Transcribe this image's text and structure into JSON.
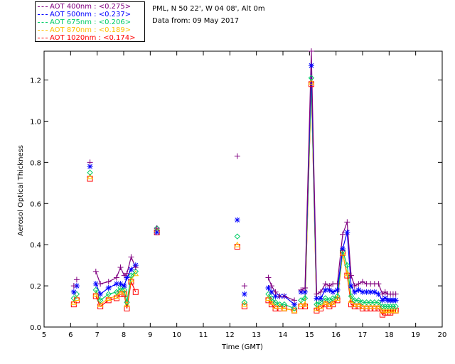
{
  "legend": [
    {
      "label": "AOT  400nm : <0.275>",
      "color": "#800080"
    },
    {
      "label": "AOT  500nm : <0.237>",
      "color": "#0000ff"
    },
    {
      "label": "AOT  675nm : <0.206>",
      "color": "#00cc66"
    },
    {
      "label": "AOT  870nm : <0.189>",
      "color": "#ffbf00"
    },
    {
      "label": "AOT 1020nm : <0.174>",
      "color": "#ff0000"
    }
  ],
  "info": {
    "location": "PML, N 50 22', W 04 08', Alt 0m",
    "date": "Data from: 09 May 2017"
  },
  "chart_data": {
    "type": "line",
    "title": "",
    "xlabel": "Time (GMT)",
    "ylabel": "Aerosol Optical Thickness",
    "xlim": [
      5,
      20
    ],
    "ylim": [
      0,
      1.34
    ],
    "xticks": [
      "5",
      "6",
      "7",
      "8",
      "9",
      "10",
      "11",
      "12",
      "13",
      "14",
      "15",
      "16",
      "17",
      "18",
      "19",
      "20"
    ],
    "yticks": [
      "0.0",
      "0.2",
      "0.4",
      "0.6",
      "0.8",
      "1.0",
      "1.2"
    ],
    "x": [
      6.12,
      6.23,
      6.73,
      6.95,
      7.12,
      7.43,
      7.73,
      7.88,
      8.02,
      8.12,
      8.28,
      8.45,
      9.25,
      12.28,
      12.55,
      13.45,
      13.57,
      13.72,
      13.88,
      14.05,
      14.43,
      14.68,
      14.83,
      15.07,
      15.27,
      15.42,
      15.6,
      15.75,
      15.88,
      16.05,
      16.25,
      16.42,
      16.57,
      16.7,
      16.85,
      17.0,
      17.15,
      17.3,
      17.45,
      17.6,
      17.75,
      17.85,
      17.95,
      18.05,
      18.15,
      18.25
    ],
    "segment_breaks_after_index": [
      0,
      1,
      2,
      11,
      12,
      13,
      14,
      20
    ],
    "series": [
      {
        "name": "AOT 400nm",
        "marker": "plus",
        "values": [
          0.2,
          0.23,
          0.8,
          0.27,
          0.21,
          0.22,
          0.24,
          0.29,
          0.25,
          0.26,
          0.34,
          0.29,
          0.48,
          0.83,
          0.2,
          0.24,
          0.2,
          0.17,
          0.15,
          0.15,
          0.13,
          0.18,
          0.19,
          1.34,
          0.16,
          0.17,
          0.21,
          0.2,
          0.21,
          0.21,
          0.45,
          0.51,
          0.25,
          0.2,
          0.21,
          0.22,
          0.21,
          0.21,
          0.21,
          0.21,
          0.16,
          0.17,
          0.16,
          0.16,
          0.16,
          0.16
        ]
      },
      {
        "name": "AOT 500nm",
        "marker": "asterisk",
        "values": [
          0.17,
          0.2,
          0.78,
          0.21,
          0.16,
          0.19,
          0.21,
          0.21,
          0.2,
          0.24,
          0.28,
          0.3,
          0.46,
          0.52,
          0.16,
          0.19,
          0.17,
          0.15,
          0.15,
          0.15,
          0.11,
          0.17,
          0.17,
          1.27,
          0.14,
          0.14,
          0.18,
          0.18,
          0.17,
          0.18,
          0.38,
          0.46,
          0.2,
          0.17,
          0.18,
          0.17,
          0.17,
          0.17,
          0.17,
          0.16,
          0.13,
          0.14,
          0.13,
          0.13,
          0.13,
          0.13
        ]
      },
      {
        "name": "AOT 675nm",
        "marker": "diamond",
        "values": [
          0.14,
          0.16,
          0.75,
          0.18,
          0.13,
          0.16,
          0.17,
          0.19,
          0.18,
          0.12,
          0.25,
          0.27,
          0.48,
          0.44,
          0.12,
          0.16,
          0.14,
          0.12,
          0.11,
          0.11,
          0.09,
          0.13,
          0.14,
          1.21,
          0.11,
          0.12,
          0.14,
          0.13,
          0.14,
          0.15,
          0.37,
          0.3,
          0.15,
          0.13,
          0.13,
          0.12,
          0.12,
          0.12,
          0.12,
          0.12,
          0.1,
          0.1,
          0.1,
          0.1,
          0.1,
          0.1
        ]
      },
      {
        "name": "AOT 870nm",
        "marker": "triangle",
        "values": [
          0.12,
          0.14,
          0.73,
          0.16,
          0.11,
          0.14,
          0.15,
          0.17,
          0.17,
          0.11,
          0.23,
          0.26,
          0.47,
          0.4,
          0.11,
          0.14,
          0.12,
          0.1,
          0.1,
          0.09,
          0.08,
          0.11,
          0.11,
          1.19,
          0.09,
          0.1,
          0.12,
          0.11,
          0.12,
          0.14,
          0.36,
          0.26,
          0.13,
          0.11,
          0.11,
          0.1,
          0.1,
          0.1,
          0.1,
          0.1,
          0.08,
          0.08,
          0.08,
          0.08,
          0.08,
          0.08
        ]
      },
      {
        "name": "AOT 1020nm",
        "marker": "square",
        "values": [
          0.11,
          0.13,
          0.72,
          0.15,
          0.1,
          0.13,
          0.14,
          0.16,
          0.16,
          0.09,
          0.22,
          0.17,
          0.46,
          0.39,
          0.1,
          0.13,
          0.11,
          0.09,
          0.09,
          0.09,
          0.08,
          0.1,
          0.1,
          1.18,
          0.08,
          0.09,
          0.11,
          0.1,
          0.11,
          0.13,
          0.36,
          0.25,
          0.11,
          0.1,
          0.1,
          0.09,
          0.09,
          0.09,
          0.09,
          0.09,
          0.06,
          0.07,
          0.07,
          0.07,
          0.08,
          0.08
        ]
      }
    ]
  }
}
